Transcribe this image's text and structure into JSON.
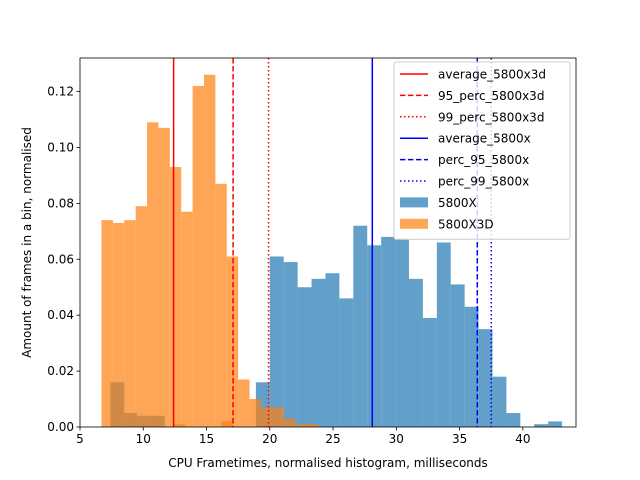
{
  "chart_data": {
    "type": "bar",
    "title": "",
    "xlabel": "CPU Frametimes, normalised histogram, milliseconds",
    "ylabel": "Amount of frames in a bin, normalised",
    "xlim": [
      5,
      44.2
    ],
    "ylim": [
      0,
      0.132
    ],
    "xticks": [
      5,
      10,
      15,
      20,
      25,
      30,
      35,
      40
    ],
    "yticks": [
      0.0,
      0.02,
      0.04,
      0.06,
      0.08,
      0.1,
      0.12
    ],
    "grid": false,
    "legend_position": "upper-right",
    "series": [
      {
        "name": "5800X",
        "kind": "histogram",
        "color": "#1f77b4",
        "alpha": 0.7,
        "bins": [
          [
            7.4,
            8.5,
            0.016
          ],
          [
            8.5,
            9.5,
            0.005
          ],
          [
            9.5,
            10.6,
            0.004
          ],
          [
            10.6,
            11.7,
            0.004
          ],
          [
            18.9,
            20.0,
            0.016
          ],
          [
            20.0,
            21.1,
            0.061
          ],
          [
            21.1,
            22.2,
            0.059
          ],
          [
            22.2,
            23.3,
            0.05
          ],
          [
            23.3,
            24.4,
            0.053
          ],
          [
            24.4,
            25.5,
            0.055
          ],
          [
            25.5,
            26.6,
            0.046
          ],
          [
            26.6,
            27.7,
            0.072
          ],
          [
            27.7,
            28.8,
            0.065
          ],
          [
            28.8,
            29.9,
            0.068
          ],
          [
            29.9,
            31.0,
            0.067
          ],
          [
            31.0,
            32.1,
            0.053
          ],
          [
            32.1,
            33.2,
            0.039
          ],
          [
            33.2,
            34.3,
            0.066
          ],
          [
            34.3,
            35.4,
            0.051
          ],
          [
            35.4,
            36.5,
            0.043
          ],
          [
            36.5,
            37.6,
            0.035
          ],
          [
            37.6,
            38.7,
            0.018
          ],
          [
            38.7,
            39.8,
            0.005
          ],
          [
            40.9,
            42.0,
            0.001
          ],
          [
            42.0,
            43.1,
            0.002
          ]
        ]
      },
      {
        "name": "5800X3D",
        "kind": "histogram",
        "color": "#ff7f0e",
        "alpha": 0.7,
        "bins": [
          [
            6.7,
            7.6,
            0.074
          ],
          [
            7.6,
            8.5,
            0.073
          ],
          [
            8.5,
            9.4,
            0.074
          ],
          [
            9.4,
            10.3,
            0.079
          ],
          [
            10.3,
            11.2,
            0.109
          ],
          [
            11.2,
            12.1,
            0.107
          ],
          [
            12.1,
            13.0,
            0.093
          ],
          [
            13.0,
            13.9,
            0.077
          ],
          [
            13.9,
            14.8,
            0.122
          ],
          [
            14.8,
            15.7,
            0.126
          ],
          [
            15.7,
            16.6,
            0.087
          ],
          [
            16.6,
            17.5,
            0.061
          ],
          [
            17.5,
            18.4,
            0.017
          ],
          [
            18.4,
            19.3,
            0.01
          ],
          [
            19.3,
            20.2,
            0.007
          ],
          [
            20.2,
            21.1,
            0.007
          ],
          [
            21.1,
            22.0,
            0.003
          ],
          [
            22.0,
            22.9,
            0.001
          ],
          [
            22.9,
            23.8,
            0.001
          ],
          [
            12.4,
            13.3,
            0.001
          ],
          [
            16.2,
            17.1,
            0.002
          ]
        ]
      }
    ],
    "vlines": [
      {
        "name": "average_5800x3d",
        "x": 12.4,
        "color": "#ff0000",
        "style": "solid"
      },
      {
        "name": "95_perc_5800x3d",
        "x": 17.1,
        "color": "#ff0000",
        "style": "dashed"
      },
      {
        "name": "99_perc_5800x3d",
        "x": 19.9,
        "color": "#ff0000",
        "style": "dotted"
      },
      {
        "name": "average_5800x",
        "x": 28.1,
        "color": "#0000ff",
        "style": "solid"
      },
      {
        "name": "perc_95_5800x",
        "x": 36.4,
        "color": "#0000ff",
        "style": "dashed"
      },
      {
        "name": "perc_99_5800x",
        "x": 37.5,
        "color": "#0000ff",
        "style": "dotted"
      }
    ],
    "legend": [
      {
        "label": "average_5800x3d",
        "kind": "line",
        "color": "#ff0000",
        "style": "solid"
      },
      {
        "label": "95_perc_5800x3d",
        "kind": "line",
        "color": "#ff0000",
        "style": "dashed"
      },
      {
        "label": "99_perc_5800x3d",
        "kind": "line",
        "color": "#ff0000",
        "style": "dotted"
      },
      {
        "label": "average_5800x",
        "kind": "line",
        "color": "#0000ff",
        "style": "solid"
      },
      {
        "label": "perc_95_5800x",
        "kind": "line",
        "color": "#0000ff",
        "style": "dashed"
      },
      {
        "label": "perc_99_5800x",
        "kind": "line",
        "color": "#0000ff",
        "style": "dotted"
      },
      {
        "label": "5800X",
        "kind": "patch",
        "color": "#1f77b4"
      },
      {
        "label": "5800X3D",
        "kind": "patch",
        "color": "#ff7f0e"
      }
    ]
  }
}
